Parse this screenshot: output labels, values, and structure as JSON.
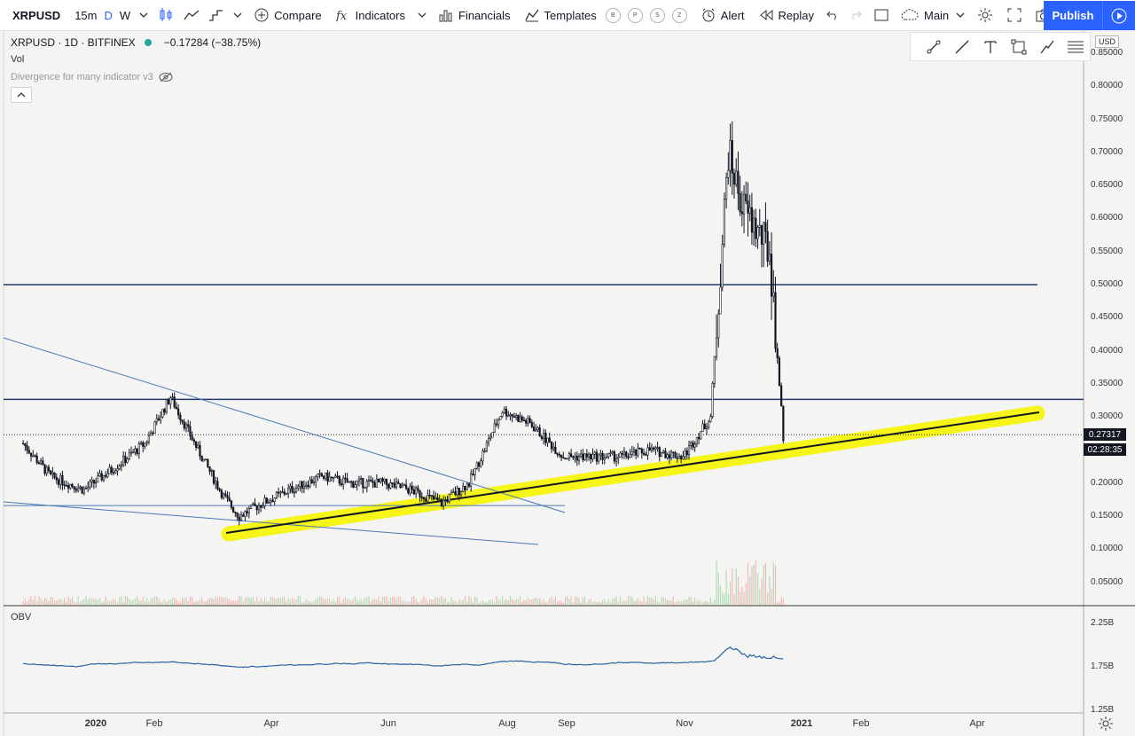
{
  "toolbar": {
    "symbol": "XRPUSD",
    "intervals": [
      "15m",
      "D",
      "W"
    ],
    "compare_label": "Compare",
    "indicators_label": "Indicators",
    "financials_label": "Financials",
    "templates_label": "Templates",
    "template_badges": [
      "B",
      "P",
      "S",
      "Z"
    ],
    "alert_label": "Alert",
    "replay_label": "Replay",
    "layout_label": "Main",
    "publish_label": "Publish"
  },
  "legend": {
    "title": "XRPUSD · 1D · BITFINEX",
    "change": "−0.17284 (−38.75%)",
    "vol_label": "Vol",
    "indicator_label": "Divergence for many indicator v3"
  },
  "price_axis": {
    "currency": "USD",
    "ticks": [
      "0.85000",
      "0.80000",
      "0.75000",
      "0.70000",
      "0.65000",
      "0.60000",
      "0.55000",
      "0.50000",
      "0.45000",
      "0.40000",
      "0.35000",
      "0.30000",
      "0.20000",
      "0.15000",
      "0.10000",
      "0.05000"
    ],
    "last_price": "0.27317",
    "countdown": "02:28:35"
  },
  "time_axis": {
    "labels": [
      "2020",
      "Feb",
      "Apr",
      "Jun",
      "Aug",
      "Sep",
      "Nov",
      "2021",
      "Feb",
      "Apr"
    ]
  },
  "obv": {
    "label": "OBV",
    "ticks": [
      "2.25B",
      "1.75B",
      "1.25B"
    ]
  },
  "colors": {
    "accent": "#2962ff",
    "up": "#26a69a",
    "down": "#ef5350",
    "candle": "#131722",
    "hline": "#1f3a6b",
    "trendline": "#4a78b8",
    "highlight": "#f5f500",
    "obv_line": "#2962a8"
  },
  "chart_data": {
    "type": "candlestick",
    "symbol": "XRPUSD",
    "interval": "1D",
    "exchange": "BITFINEX",
    "ylim": [
      0.0,
      0.86
    ],
    "x_ticks": [
      "2020",
      "Feb",
      "Apr",
      "Jun",
      "Aug",
      "Sep",
      "Nov",
      "2021",
      "Feb",
      "Apr"
    ],
    "close_approx": [
      [
        "2019-12-01",
        0.26
      ],
      [
        "2019-12-15",
        0.21
      ],
      [
        "2020-01-01",
        0.19
      ],
      [
        "2020-01-15",
        0.22
      ],
      [
        "2020-02-01",
        0.26
      ],
      [
        "2020-02-14",
        0.33
      ],
      [
        "2020-02-28",
        0.25
      ],
      [
        "2020-03-12",
        0.18
      ],
      [
        "2020-03-20",
        0.15
      ],
      [
        "2020-04-01",
        0.17
      ],
      [
        "2020-04-15",
        0.19
      ],
      [
        "2020-05-01",
        0.21
      ],
      [
        "2020-05-15",
        0.2
      ],
      [
        "2020-06-01",
        0.2
      ],
      [
        "2020-06-15",
        0.19
      ],
      [
        "2020-07-01",
        0.17
      ],
      [
        "2020-07-15",
        0.2
      ],
      [
        "2020-08-01",
        0.31
      ],
      [
        "2020-08-15",
        0.29
      ],
      [
        "2020-09-01",
        0.24
      ],
      [
        "2020-09-15",
        0.24
      ],
      [
        "2020-10-01",
        0.24
      ],
      [
        "2020-10-15",
        0.25
      ],
      [
        "2020-11-01",
        0.24
      ],
      [
        "2020-11-15",
        0.3
      ],
      [
        "2020-11-24",
        0.7
      ],
      [
        "2020-12-01",
        0.62
      ],
      [
        "2020-12-15",
        0.55
      ],
      [
        "2020-12-22",
        0.27
      ]
    ],
    "horizontal_lines": [
      0.5,
      0.3265,
      0.166
    ],
    "last_price": 0.27317,
    "obv_ticks": [
      "2.25B",
      "1.75B",
      "1.25B"
    ]
  }
}
